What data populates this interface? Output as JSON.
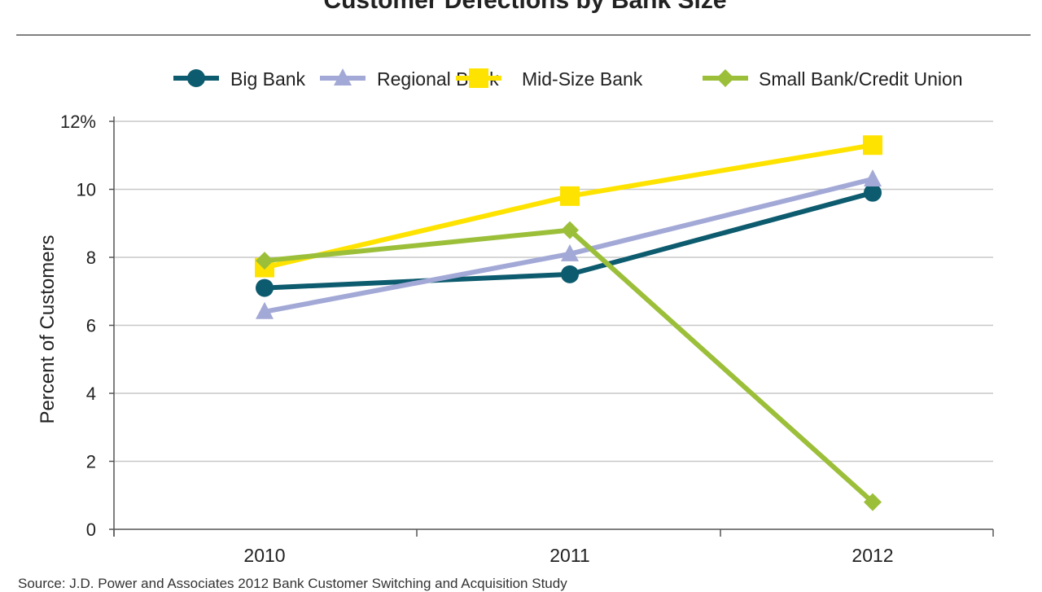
{
  "title": "Customer Defections by Bank Size",
  "source": "Source: J.D. Power and Associates 2012 Bank Customer Switching and Acquisition Study",
  "chart_data": {
    "type": "line",
    "title": "Customer Defections by Bank Size",
    "xlabel": "",
    "ylabel": "Percent of Customers",
    "categories": [
      "2010",
      "2011",
      "2012"
    ],
    "ylim": [
      0,
      12
    ],
    "yticks": [
      0,
      2,
      4,
      6,
      8,
      10,
      12
    ],
    "ytick_labels": [
      "0",
      "2",
      "4",
      "6",
      "8",
      "10",
      "12%"
    ],
    "grid": true,
    "legend_position": "top",
    "series": [
      {
        "name": "Big Bank",
        "values": [
          7.1,
          7.5,
          9.9
        ],
        "color": "#0d5b6e",
        "marker": "circle"
      },
      {
        "name": "Regional Bank",
        "values": [
          6.4,
          8.1,
          10.3
        ],
        "color": "#a3a9d6",
        "marker": "triangle"
      },
      {
        "name": "Mid-Size Bank",
        "values": [
          7.7,
          9.8,
          11.3
        ],
        "color": "#ffe300",
        "marker": "square"
      },
      {
        "name": "Small Bank/Credit Union",
        "values": [
          7.9,
          8.8,
          0.8
        ],
        "color": "#9cbf3a",
        "marker": "diamond"
      }
    ]
  }
}
